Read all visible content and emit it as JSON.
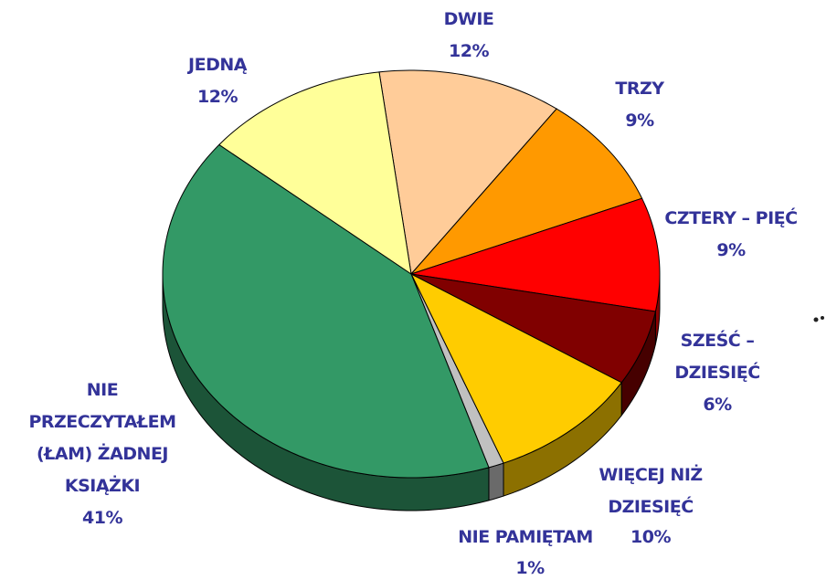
{
  "chart_data": {
    "type": "pie",
    "categories": [
      "DWIE",
      "TRZY",
      "CZTERY – PIĘĆ",
      "SZEŚĆ – DZIESIĘĆ",
      "WIĘCEJ NIŻ DZIESIĘĆ",
      "NIE PAMIĘTAM",
      "NIE PRZECZYTAŁEM (ŁAM) ŻADNEJ KSIĄŻKI",
      "JEDNĄ"
    ],
    "values": [
      12,
      9,
      9,
      6,
      10,
      1,
      41,
      12
    ],
    "value_labels": [
      "12%",
      "9%",
      "9%",
      "6%",
      "10%",
      "1%",
      "41%",
      "12%"
    ],
    "colors": [
      "#ffcc99",
      "#ff9900",
      "#ff0000",
      "#800000",
      "#ffcc00",
      "#c0c0c0",
      "#339966",
      "#ffff99"
    ],
    "start_angle": -7.4,
    "three_d": true
  }
}
